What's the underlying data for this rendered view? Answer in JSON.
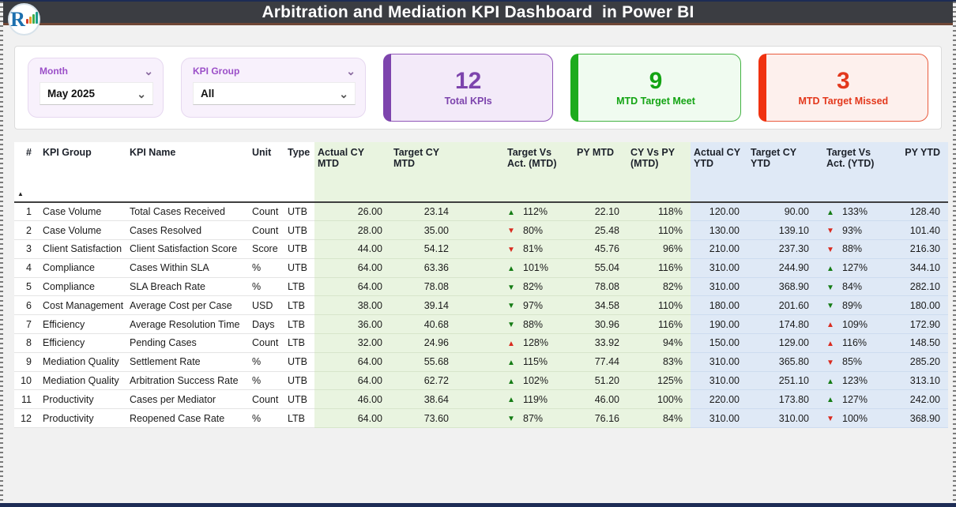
{
  "header": {
    "title": "Arbitration and Mediation KPI Dashboard  in Power BI"
  },
  "icons": {
    "chevron_down": "⌄",
    "sort_ascending": "▲",
    "up_arrow": "▲",
    "down_arrow": "▼"
  },
  "colors": {
    "accent_purple": "#7d44ad",
    "accent_green": "#13a413",
    "accent_red": "#e3381c",
    "good_arrow": "#157c15",
    "bad_arrow": "#d92b1f",
    "mtd_section_bg": "#e9f4e0",
    "ytd_section_bg": "#dfe9f6"
  },
  "filters": {
    "month": {
      "label": "Month",
      "value": "May 2025"
    },
    "kpi_group": {
      "label": "KPI Group",
      "value": "All"
    }
  },
  "cards": [
    {
      "value": "12",
      "label": "Total KPIs"
    },
    {
      "value": "9",
      "label": "MTD Target Meet"
    },
    {
      "value": "3",
      "label": "MTD Target Missed"
    }
  ],
  "table": {
    "columns": [
      "#",
      "KPI Group",
      "KPI Name",
      "Unit",
      "Type",
      "Actual CY MTD",
      "Target CY MTD",
      "Target Vs Act. (MTD)",
      "PY MTD",
      "CY Vs PY (MTD)",
      "Actual CY YTD",
      "Target CY YTD",
      "Target Vs Act. (YTD)",
      "PY YTD"
    ],
    "rows": [
      {
        "num": "1",
        "group": "Case Volume",
        "name": "Total Cases Received",
        "unit": "Count",
        "type": "UTB",
        "a_mtd": "26.00",
        "t_mtd": "23.14",
        "tva_mtd": {
          "dir": "up",
          "good": true,
          "value": "112%"
        },
        "py_mtd": "22.10",
        "cypy_mtd": "118%",
        "a_ytd": "120.00",
        "t_ytd": "90.00",
        "tva_ytd": {
          "dir": "up",
          "good": true,
          "value": "133%"
        },
        "py_ytd": "128.40"
      },
      {
        "num": "2",
        "group": "Case Volume",
        "name": "Cases Resolved",
        "unit": "Count",
        "type": "UTB",
        "a_mtd": "28.00",
        "t_mtd": "35.00",
        "tva_mtd": {
          "dir": "down",
          "good": false,
          "value": "80%"
        },
        "py_mtd": "25.48",
        "cypy_mtd": "110%",
        "a_ytd": "130.00",
        "t_ytd": "139.10",
        "tva_ytd": {
          "dir": "down",
          "good": false,
          "value": "93%"
        },
        "py_ytd": "101.40"
      },
      {
        "num": "3",
        "group": "Client Satisfaction",
        "name": "Client Satisfaction Score",
        "unit": "Score",
        "type": "UTB",
        "a_mtd": "44.00",
        "t_mtd": "54.12",
        "tva_mtd": {
          "dir": "down",
          "good": false,
          "value": "81%"
        },
        "py_mtd": "45.76",
        "cypy_mtd": "96%",
        "a_ytd": "210.00",
        "t_ytd": "237.30",
        "tva_ytd": {
          "dir": "down",
          "good": false,
          "value": "88%"
        },
        "py_ytd": "216.30"
      },
      {
        "num": "4",
        "group": "Compliance",
        "name": "Cases Within SLA",
        "unit": "%",
        "type": "UTB",
        "a_mtd": "64.00",
        "t_mtd": "63.36",
        "tva_mtd": {
          "dir": "up",
          "good": true,
          "value": "101%"
        },
        "py_mtd": "55.04",
        "cypy_mtd": "116%",
        "a_ytd": "310.00",
        "t_ytd": "244.90",
        "tva_ytd": {
          "dir": "up",
          "good": true,
          "value": "127%"
        },
        "py_ytd": "344.10"
      },
      {
        "num": "5",
        "group": "Compliance",
        "name": "SLA Breach Rate",
        "unit": "%",
        "type": "LTB",
        "a_mtd": "64.00",
        "t_mtd": "78.08",
        "tva_mtd": {
          "dir": "down",
          "good": true,
          "value": "82%"
        },
        "py_mtd": "78.08",
        "cypy_mtd": "82%",
        "a_ytd": "310.00",
        "t_ytd": "368.90",
        "tva_ytd": {
          "dir": "down",
          "good": true,
          "value": "84%"
        },
        "py_ytd": "282.10"
      },
      {
        "num": "6",
        "group": "Cost Management",
        "name": "Average Cost per Case",
        "unit": "USD",
        "type": "LTB",
        "a_mtd": "38.00",
        "t_mtd": "39.14",
        "tva_mtd": {
          "dir": "down",
          "good": true,
          "value": "97%"
        },
        "py_mtd": "34.58",
        "cypy_mtd": "110%",
        "a_ytd": "180.00",
        "t_ytd": "201.60",
        "tva_ytd": {
          "dir": "down",
          "good": true,
          "value": "89%"
        },
        "py_ytd": "180.00"
      },
      {
        "num": "7",
        "group": "Efficiency",
        "name": "Average Resolution Time",
        "unit": "Days",
        "type": "LTB",
        "a_mtd": "36.00",
        "t_mtd": "40.68",
        "tva_mtd": {
          "dir": "down",
          "good": true,
          "value": "88%"
        },
        "py_mtd": "30.96",
        "cypy_mtd": "116%",
        "a_ytd": "190.00",
        "t_ytd": "174.80",
        "tva_ytd": {
          "dir": "up",
          "good": false,
          "value": "109%"
        },
        "py_ytd": "172.90"
      },
      {
        "num": "8",
        "group": "Efficiency",
        "name": "Pending Cases",
        "unit": "Count",
        "type": "LTB",
        "a_mtd": "32.00",
        "t_mtd": "24.96",
        "tva_mtd": {
          "dir": "up",
          "good": false,
          "value": "128%"
        },
        "py_mtd": "33.92",
        "cypy_mtd": "94%",
        "a_ytd": "150.00",
        "t_ytd": "129.00",
        "tva_ytd": {
          "dir": "up",
          "good": false,
          "value": "116%"
        },
        "py_ytd": "148.50"
      },
      {
        "num": "9",
        "group": "Mediation Quality",
        "name": "Settlement Rate",
        "unit": "%",
        "type": "UTB",
        "a_mtd": "64.00",
        "t_mtd": "55.68",
        "tva_mtd": {
          "dir": "up",
          "good": true,
          "value": "115%"
        },
        "py_mtd": "77.44",
        "cypy_mtd": "83%",
        "a_ytd": "310.00",
        "t_ytd": "365.80",
        "tva_ytd": {
          "dir": "down",
          "good": false,
          "value": "85%"
        },
        "py_ytd": "285.20"
      },
      {
        "num": "10",
        "group": "Mediation Quality",
        "name": "Arbitration Success Rate",
        "unit": "%",
        "type": "UTB",
        "a_mtd": "64.00",
        "t_mtd": "62.72",
        "tva_mtd": {
          "dir": "up",
          "good": true,
          "value": "102%"
        },
        "py_mtd": "51.20",
        "cypy_mtd": "125%",
        "a_ytd": "310.00",
        "t_ytd": "251.10",
        "tva_ytd": {
          "dir": "up",
          "good": true,
          "value": "123%"
        },
        "py_ytd": "313.10"
      },
      {
        "num": "11",
        "group": "Productivity",
        "name": "Cases per Mediator",
        "unit": "Count",
        "type": "UTB",
        "a_mtd": "46.00",
        "t_mtd": "38.64",
        "tva_mtd": {
          "dir": "up",
          "good": true,
          "value": "119%"
        },
        "py_mtd": "46.00",
        "cypy_mtd": "100%",
        "a_ytd": "220.00",
        "t_ytd": "173.80",
        "tva_ytd": {
          "dir": "up",
          "good": true,
          "value": "127%"
        },
        "py_ytd": "242.00"
      },
      {
        "num": "12",
        "group": "Productivity",
        "name": "Reopened Case Rate",
        "unit": "%",
        "type": "LTB",
        "a_mtd": "64.00",
        "t_mtd": "73.60",
        "tva_mtd": {
          "dir": "down",
          "good": true,
          "value": "87%"
        },
        "py_mtd": "76.16",
        "cypy_mtd": "84%",
        "a_ytd": "310.00",
        "t_ytd": "310.00",
        "tva_ytd": {
          "dir": "down",
          "good": false,
          "value": "100%"
        },
        "py_ytd": "368.90"
      }
    ]
  }
}
